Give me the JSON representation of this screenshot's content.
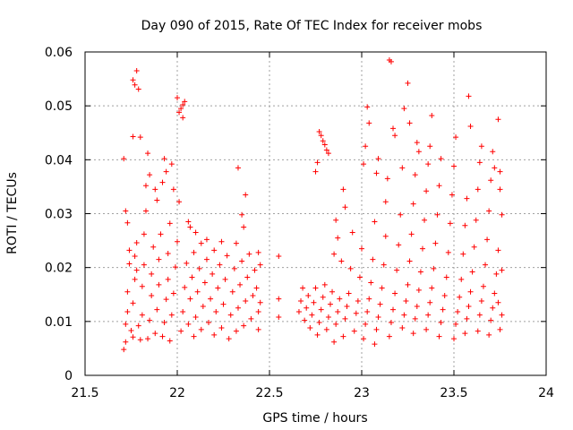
{
  "chart_data": {
    "type": "scatter",
    "title": "Day 090 of 2015, Rate Of TEC Index for receiver mobs",
    "xlabel": "GPS time / hours",
    "ylabel": "ROTI / TECUs",
    "xlim": [
      21.5,
      24
    ],
    "ylim": [
      0,
      0.06
    ],
    "x_ticks": [
      21.5,
      22,
      22.5,
      23,
      23.5,
      24
    ],
    "x_tick_labels": [
      "21.5",
      "22",
      "22.5",
      "23",
      "23.5",
      "24"
    ],
    "y_ticks": [
      0,
      0.01,
      0.02,
      0.03,
      0.04,
      0.05,
      0.06
    ],
    "y_tick_labels": [
      "0",
      "0.01",
      "0.02",
      "0.03",
      "0.04",
      "0.05",
      "0.06"
    ],
    "grid": true,
    "marker": "+",
    "color": "#ff0000",
    "series": [
      {
        "name": "mobs",
        "points": [
          [
            21.71,
            0.0048
          ],
          [
            21.72,
            0.0062
          ],
          [
            21.72,
            0.0095
          ],
          [
            21.73,
            0.0118
          ],
          [
            21.73,
            0.0155
          ],
          [
            21.74,
            0.0207
          ],
          [
            21.74,
            0.0232
          ],
          [
            21.72,
            0.0305
          ],
          [
            21.73,
            0.0283
          ],
          [
            21.71,
            0.0402
          ],
          [
            21.75,
            0.0083
          ],
          [
            21.76,
            0.0071
          ],
          [
            21.76,
            0.0134
          ],
          [
            21.77,
            0.0178
          ],
          [
            21.77,
            0.0221
          ],
          [
            21.78,
            0.0195
          ],
          [
            21.78,
            0.0246
          ],
          [
            21.76,
            0.0443
          ],
          [
            21.76,
            0.0548
          ],
          [
            21.77,
            0.0539
          ],
          [
            21.78,
            0.0565
          ],
          [
            21.79,
            0.0531
          ],
          [
            21.8,
            0.0442
          ],
          [
            21.79,
            0.0092
          ],
          [
            21.8,
            0.0066
          ],
          [
            21.81,
            0.0112
          ],
          [
            21.81,
            0.0165
          ],
          [
            21.82,
            0.0205
          ],
          [
            21.82,
            0.0262
          ],
          [
            21.83,
            0.0305
          ],
          [
            21.83,
            0.0352
          ],
          [
            21.84,
            0.0412
          ],
          [
            21.85,
            0.0372
          ],
          [
            21.84,
            0.0068
          ],
          [
            21.85,
            0.0102
          ],
          [
            21.86,
            0.0148
          ],
          [
            21.86,
            0.0188
          ],
          [
            21.87,
            0.0238
          ],
          [
            21.88,
            0.0345
          ],
          [
            21.89,
            0.0325
          ],
          [
            21.88,
            0.0078
          ],
          [
            21.89,
            0.0122
          ],
          [
            21.9,
            0.0168
          ],
          [
            21.9,
            0.0215
          ],
          [
            21.91,
            0.0262
          ],
          [
            21.92,
            0.0358
          ],
          [
            21.93,
            0.0402
          ],
          [
            21.94,
            0.0378
          ],
          [
            21.92,
            0.0072
          ],
          [
            21.93,
            0.0098
          ],
          [
            21.94,
            0.0141
          ],
          [
            21.95,
            0.0178
          ],
          [
            21.95,
            0.0226
          ],
          [
            21.96,
            0.0282
          ],
          [
            21.97,
            0.0392
          ],
          [
            21.98,
            0.0345
          ],
          [
            21.96,
            0.0064
          ],
          [
            21.97,
            0.0112
          ],
          [
            21.98,
            0.0152
          ],
          [
            21.99,
            0.0201
          ],
          [
            22.0,
            0.0248
          ],
          [
            22.01,
            0.0322
          ],
          [
            22.0,
            0.0515
          ],
          [
            22.01,
            0.0488
          ],
          [
            22.02,
            0.0495
          ],
          [
            22.03,
            0.0502
          ],
          [
            22.04,
            0.0508
          ],
          [
            22.03,
            0.0478
          ],
          [
            22.02,
            0.0082
          ],
          [
            22.03,
            0.0118
          ],
          [
            22.04,
            0.0163
          ],
          [
            22.05,
            0.0208
          ],
          [
            22.06,
            0.0285
          ],
          [
            22.07,
            0.0275
          ],
          [
            22.06,
            0.0095
          ],
          [
            22.07,
            0.0142
          ],
          [
            22.08,
            0.0182
          ],
          [
            22.09,
            0.0228
          ],
          [
            22.1,
            0.0265
          ],
          [
            22.09,
            0.0072
          ],
          [
            22.1,
            0.0108
          ],
          [
            22.11,
            0.0155
          ],
          [
            22.12,
            0.0198
          ],
          [
            22.13,
            0.0245
          ],
          [
            22.13,
            0.0085
          ],
          [
            22.14,
            0.0128
          ],
          [
            22.15,
            0.0172
          ],
          [
            22.16,
            0.0215
          ],
          [
            22.16,
            0.0252
          ],
          [
            22.17,
            0.0098
          ],
          [
            22.18,
            0.0142
          ],
          [
            22.19,
            0.0188
          ],
          [
            22.2,
            0.0232
          ],
          [
            22.2,
            0.0075
          ],
          [
            22.21,
            0.0118
          ],
          [
            22.22,
            0.0162
          ],
          [
            22.23,
            0.0205
          ],
          [
            22.24,
            0.0248
          ],
          [
            22.24,
            0.0088
          ],
          [
            22.25,
            0.0132
          ],
          [
            22.26,
            0.0178
          ],
          [
            22.27,
            0.0222
          ],
          [
            22.28,
            0.0068
          ],
          [
            22.29,
            0.0112
          ],
          [
            22.3,
            0.0155
          ],
          [
            22.31,
            0.0198
          ],
          [
            22.32,
            0.0245
          ],
          [
            22.33,
            0.0385
          ],
          [
            22.32,
            0.0082
          ],
          [
            22.33,
            0.0125
          ],
          [
            22.34,
            0.0168
          ],
          [
            22.35,
            0.0212
          ],
          [
            22.35,
            0.0298
          ],
          [
            22.36,
            0.0275
          ],
          [
            22.37,
            0.0335
          ],
          [
            22.36,
            0.0092
          ],
          [
            22.37,
            0.0138
          ],
          [
            22.38,
            0.0182
          ],
          [
            22.39,
            0.0225
          ],
          [
            22.4,
            0.0105
          ],
          [
            22.41,
            0.0148
          ],
          [
            22.42,
            0.0195
          ],
          [
            22.43,
            0.0162
          ],
          [
            22.44,
            0.0118
          ],
          [
            22.44,
            0.0085
          ],
          [
            22.45,
            0.0205
          ],
          [
            22.45,
            0.0135
          ],
          [
            22.44,
            0.0228
          ],
          [
            22.55,
            0.0221
          ],
          [
            22.55,
            0.0142
          ],
          [
            22.55,
            0.0108
          ],
          [
            22.66,
            0.0118
          ],
          [
            22.67,
            0.0138
          ],
          [
            22.68,
            0.0162
          ],
          [
            22.69,
            0.0102
          ],
          [
            22.7,
            0.0125
          ],
          [
            22.71,
            0.0148
          ],
          [
            22.72,
            0.0088
          ],
          [
            22.73,
            0.0112
          ],
          [
            22.74,
            0.0135
          ],
          [
            22.75,
            0.0162
          ],
          [
            22.75,
            0.0378
          ],
          [
            22.76,
            0.0395
          ],
          [
            22.77,
            0.0452
          ],
          [
            22.78,
            0.0445
          ],
          [
            22.79,
            0.0435
          ],
          [
            22.8,
            0.0428
          ],
          [
            22.81,
            0.0418
          ],
          [
            22.82,
            0.0412
          ],
          [
            22.76,
            0.0075
          ],
          [
            22.77,
            0.0098
          ],
          [
            22.78,
            0.0122
          ],
          [
            22.79,
            0.0145
          ],
          [
            22.8,
            0.0168
          ],
          [
            22.81,
            0.0085
          ],
          [
            22.82,
            0.0108
          ],
          [
            22.83,
            0.0132
          ],
          [
            22.84,
            0.0155
          ],
          [
            22.85,
            0.0225
          ],
          [
            22.86,
            0.0288
          ],
          [
            22.87,
            0.0255
          ],
          [
            22.85,
            0.0062
          ],
          [
            22.86,
            0.0095
          ],
          [
            22.87,
            0.0118
          ],
          [
            22.88,
            0.0142
          ],
          [
            22.89,
            0.0212
          ],
          [
            22.9,
            0.0345
          ],
          [
            22.91,
            0.0312
          ],
          [
            22.9,
            0.0072
          ],
          [
            22.91,
            0.0105
          ],
          [
            22.92,
            0.0128
          ],
          [
            22.93,
            0.0152
          ],
          [
            22.94,
            0.0198
          ],
          [
            22.95,
            0.0265
          ],
          [
            22.96,
            0.0082
          ],
          [
            22.97,
            0.0115
          ],
          [
            22.98,
            0.0138
          ],
          [
            22.99,
            0.0182
          ],
          [
            23.0,
            0.0235
          ],
          [
            23.01,
            0.0392
          ],
          [
            23.02,
            0.0425
          ],
          [
            23.03,
            0.0498
          ],
          [
            23.04,
            0.0468
          ],
          [
            23.01,
            0.0068
          ],
          [
            23.02,
            0.0095
          ],
          [
            23.03,
            0.0118
          ],
          [
            23.04,
            0.0142
          ],
          [
            23.05,
            0.0172
          ],
          [
            23.06,
            0.0215
          ],
          [
            23.07,
            0.0285
          ],
          [
            23.08,
            0.0375
          ],
          [
            23.09,
            0.0402
          ],
          [
            23.07,
            0.0058
          ],
          [
            23.08,
            0.0085
          ],
          [
            23.09,
            0.0108
          ],
          [
            23.1,
            0.0132
          ],
          [
            23.11,
            0.0162
          ],
          [
            23.12,
            0.0205
          ],
          [
            23.13,
            0.0258
          ],
          [
            23.13,
            0.0322
          ],
          [
            23.14,
            0.0365
          ],
          [
            23.15,
            0.0585
          ],
          [
            23.16,
            0.0582
          ],
          [
            23.17,
            0.0458
          ],
          [
            23.18,
            0.0445
          ],
          [
            23.15,
            0.0072
          ],
          [
            23.16,
            0.0098
          ],
          [
            23.17,
            0.0122
          ],
          [
            23.18,
            0.0152
          ],
          [
            23.19,
            0.0195
          ],
          [
            23.2,
            0.0242
          ],
          [
            23.21,
            0.0298
          ],
          [
            23.22,
            0.0385
          ],
          [
            23.23,
            0.0495
          ],
          [
            23.25,
            0.0542
          ],
          [
            23.26,
            0.0468
          ],
          [
            23.22,
            0.0088
          ],
          [
            23.23,
            0.0112
          ],
          [
            23.24,
            0.0138
          ],
          [
            23.25,
            0.0168
          ],
          [
            23.26,
            0.0212
          ],
          [
            23.27,
            0.0262
          ],
          [
            23.28,
            0.0318
          ],
          [
            23.29,
            0.0372
          ],
          [
            23.3,
            0.0432
          ],
          [
            23.31,
            0.0415
          ],
          [
            23.28,
            0.0078
          ],
          [
            23.29,
            0.0105
          ],
          [
            23.3,
            0.0128
          ],
          [
            23.31,
            0.0158
          ],
          [
            23.32,
            0.0192
          ],
          [
            23.33,
            0.0235
          ],
          [
            23.34,
            0.0288
          ],
          [
            23.35,
            0.0342
          ],
          [
            23.36,
            0.0392
          ],
          [
            23.37,
            0.0425
          ],
          [
            23.38,
            0.0482
          ],
          [
            23.35,
            0.0085
          ],
          [
            23.36,
            0.0112
          ],
          [
            23.37,
            0.0135
          ],
          [
            23.38,
            0.0162
          ],
          [
            23.39,
            0.0198
          ],
          [
            23.4,
            0.0245
          ],
          [
            23.41,
            0.0298
          ],
          [
            23.42,
            0.0352
          ],
          [
            23.43,
            0.0402
          ],
          [
            23.42,
            0.0072
          ],
          [
            23.43,
            0.0098
          ],
          [
            23.44,
            0.0122
          ],
          [
            23.45,
            0.0148
          ],
          [
            23.46,
            0.0182
          ],
          [
            23.47,
            0.0228
          ],
          [
            23.48,
            0.0282
          ],
          [
            23.49,
            0.0335
          ],
          [
            23.5,
            0.0388
          ],
          [
            23.51,
            0.0442
          ],
          [
            23.5,
            0.0068
          ],
          [
            23.51,
            0.0095
          ],
          [
            23.52,
            0.0118
          ],
          [
            23.53,
            0.0145
          ],
          [
            23.54,
            0.0178
          ],
          [
            23.55,
            0.0225
          ],
          [
            23.56,
            0.0278
          ],
          [
            23.57,
            0.0328
          ],
          [
            23.58,
            0.0518
          ],
          [
            23.59,
            0.0462
          ],
          [
            23.56,
            0.0078
          ],
          [
            23.57,
            0.0105
          ],
          [
            23.58,
            0.0128
          ],
          [
            23.59,
            0.0155
          ],
          [
            23.6,
            0.0192
          ],
          [
            23.61,
            0.0238
          ],
          [
            23.62,
            0.0288
          ],
          [
            23.63,
            0.0345
          ],
          [
            23.64,
            0.0395
          ],
          [
            23.65,
            0.0425
          ],
          [
            23.63,
            0.0082
          ],
          [
            23.64,
            0.0112
          ],
          [
            23.65,
            0.0138
          ],
          [
            23.66,
            0.0165
          ],
          [
            23.67,
            0.0205
          ],
          [
            23.68,
            0.0252
          ],
          [
            23.69,
            0.0305
          ],
          [
            23.7,
            0.0362
          ],
          [
            23.71,
            0.0415
          ],
          [
            23.72,
            0.0385
          ],
          [
            23.69,
            0.0075
          ],
          [
            23.7,
            0.0102
          ],
          [
            23.71,
            0.0125
          ],
          [
            23.72,
            0.0152
          ],
          [
            23.73,
            0.0188
          ],
          [
            23.74,
            0.0232
          ],
          [
            23.74,
            0.0475
          ],
          [
            23.75,
            0.0378
          ],
          [
            23.75,
            0.0345
          ],
          [
            23.76,
            0.0298
          ],
          [
            23.76,
            0.0195
          ],
          [
            23.75,
            0.0085
          ],
          [
            23.76,
            0.0112
          ],
          [
            23.74,
            0.0135
          ]
        ]
      }
    ]
  }
}
